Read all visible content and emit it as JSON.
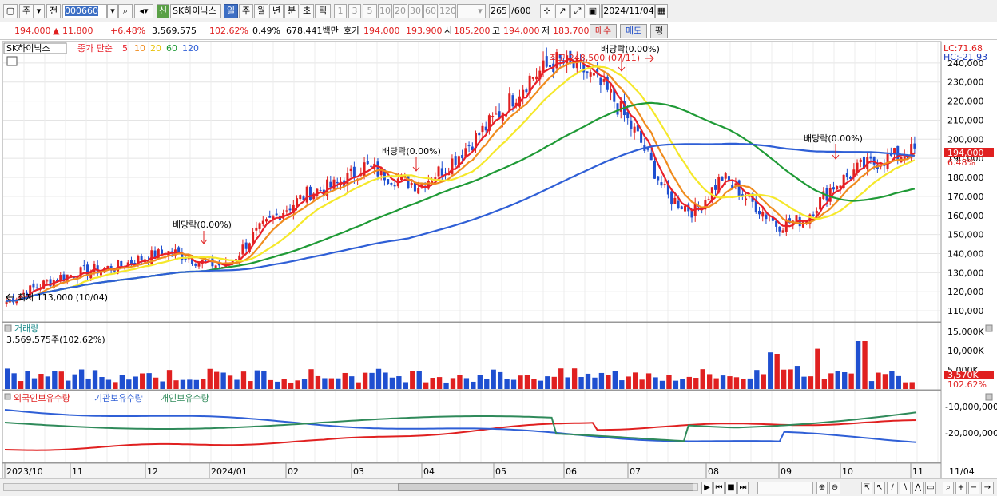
{
  "toolbar": {
    "mode": "주",
    "prev": "전",
    "code": "000660",
    "new_label": "신",
    "name": "SK하이닉스",
    "periods": [
      "일",
      "주",
      "월",
      "년",
      "분",
      "초",
      "틱"
    ],
    "active_period": "일",
    "intervals": [
      "1",
      "3",
      "5",
      "10",
      "20",
      "30",
      "60",
      "120"
    ],
    "count": "265",
    "count_total": "/600",
    "date": "2024/11/04"
  },
  "info": {
    "price": "194,000",
    "change": "▲  11,800",
    "pct": "+6.48%",
    "volume": "3,569,575",
    "vol_ratio": "102.62%",
    "turnover_pct": "0.49%",
    "amount": "678,441백만",
    "ask_label": "호가",
    "ask": "194,000",
    "bid": "193,900",
    "open_label": "시",
    "open": "185,200",
    "high_label": "고",
    "high": "194,000",
    "low_label": "저",
    "low": "183,700",
    "buy_label": "매수",
    "sell_label": "매도",
    "avg_label": "평"
  },
  "chart": {
    "title": "SK하이닉스",
    "ma_label": "종가 단순",
    "ma_periods": [
      "5",
      "10",
      "20",
      "60",
      "120"
    ],
    "ma_colors": [
      "#e8202a",
      "#f08c1e",
      "#f5e82a",
      "#1f9a36",
      "#2f5fd6"
    ],
    "lc": "LC:71.68",
    "hc": "HC:-21.93",
    "price_ticks": [
      "240,000",
      "230,000",
      "220,000",
      "210,000",
      "200,000",
      "190,000",
      "180,000",
      "170,000",
      "160,000",
      "150,000",
      "140,000",
      "130,000",
      "120,000",
      "110,000"
    ],
    "current_price": "194,000",
    "current_pct": "6.48%",
    "annotations": [
      "배당락(0.00%)",
      "배당락(0.00%)",
      "배당락(0.00%)",
      "배당락(0.00%)"
    ],
    "max_label": "최고 248,500 (07/11)",
    "min_label": "최저 113,000 (10/04)",
    "vol_title": "거래량",
    "vol_value": "3,569,575주(102.62%)",
    "vol_ticks": [
      "15,000K",
      "10,000K",
      "5,000K"
    ],
    "vol_current": "3,570K",
    "vol_current_pct": "102.62%",
    "hold_titles": [
      "외국인보유수량",
      "기관보유수량",
      "개인보유수량"
    ],
    "hold_ticks": [
      "-10,000,000",
      "-20,000,000"
    ],
    "x_labels": [
      "2023/10",
      "11",
      "12",
      "2024/01",
      "02",
      "03",
      "04",
      "05",
      "06",
      "07",
      "08",
      "09",
      "10",
      "11"
    ],
    "x_right": "11/04"
  },
  "chart_data": {
    "type": "candlestick",
    "title": "SK하이닉스",
    "ylim": [
      105000,
      250000
    ],
    "series": [
      {
        "name": "종가",
        "values": [
          115000,
          122000,
          128000,
          131000,
          133000,
          138000,
          141000,
          136000,
          133000,
          150000,
          162000,
          172000,
          176000,
          186000,
          180000,
          176000,
          186000,
          200000,
          215000,
          232000,
          241000,
          236000,
          222000,
          200000,
          170000,
          162000,
          180000,
          168000,
          155000,
          158000,
          175000,
          185000,
          190000,
          194000
        ]
      }
    ],
    "max": 248500,
    "min": 113000
  }
}
